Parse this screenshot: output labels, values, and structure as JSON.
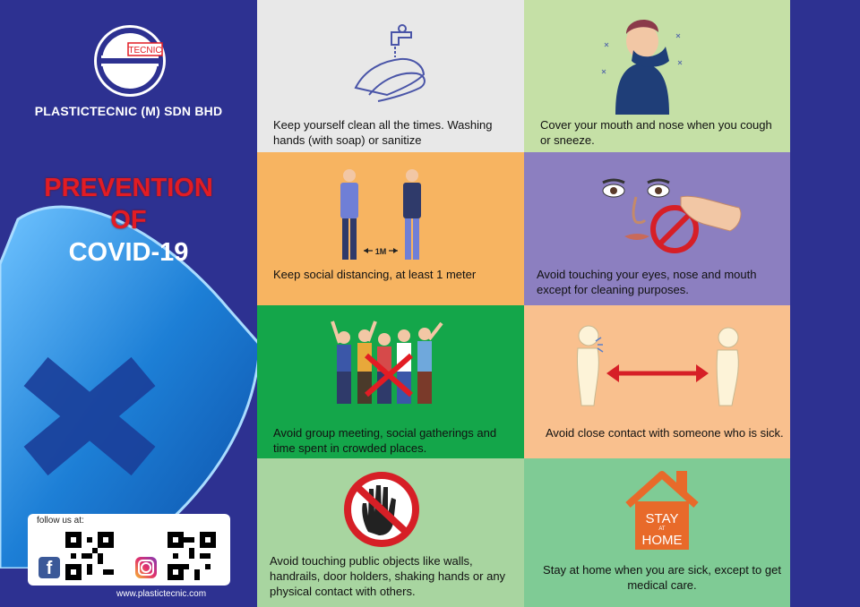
{
  "company": {
    "logo_text": "TECNIC",
    "name": "PLASTICTECNIC (M) SDN BHD"
  },
  "headline": {
    "line1": "PREVENTION",
    "line2": "OF",
    "line3": "COVID-19"
  },
  "follow": {
    "label": "follow us at:",
    "website": "www.plastictecnic.com",
    "icons": [
      "facebook-icon",
      "instagram-icon"
    ]
  },
  "tips": [
    {
      "text": "Keep yourself clean all the times. Washing hands (with soap) or sanitize",
      "icon": "handwash-icon",
      "bg": "#e8e8e8"
    },
    {
      "text": "Cover your mouth and nose when you cough or sneeze.",
      "icon": "cough-icon",
      "bg": "#c5e0a6"
    },
    {
      "text": "Keep social distancing, at least 1 meter",
      "icon": "distancing-icon",
      "bg": "#f7b461",
      "distance_label": "1M"
    },
    {
      "text": "Avoid touching your eyes, nose and mouth except for cleaning purposes.",
      "icon": "no-face-touch-icon",
      "bg": "#8c7fc0"
    },
    {
      "text": "Avoid group meeting, social gatherings and time spent in crowded places.",
      "icon": "crowd-icon",
      "bg": "#14a64a"
    },
    {
      "text": "Avoid close contact with someone who is sick.",
      "icon": "sick-contact-icon",
      "bg": "#f9c08e"
    },
    {
      "text": "Avoid touching public objects like walls, handrails, door holders, shaking hands or any physical contact with others.",
      "icon": "no-touch-hand-icon",
      "bg": "#a8d5a0"
    },
    {
      "text": "Stay at home when you are sick, except to get medical care.",
      "icon": "stay-home-icon",
      "bg": "#7fcb95",
      "house_line1": "STAY",
      "house_line2": "AT",
      "house_line3": "HOME"
    }
  ],
  "colors": {
    "background": "#2d3191",
    "title_red": "#e21c24",
    "shield_blue": "#1f8fe0"
  }
}
